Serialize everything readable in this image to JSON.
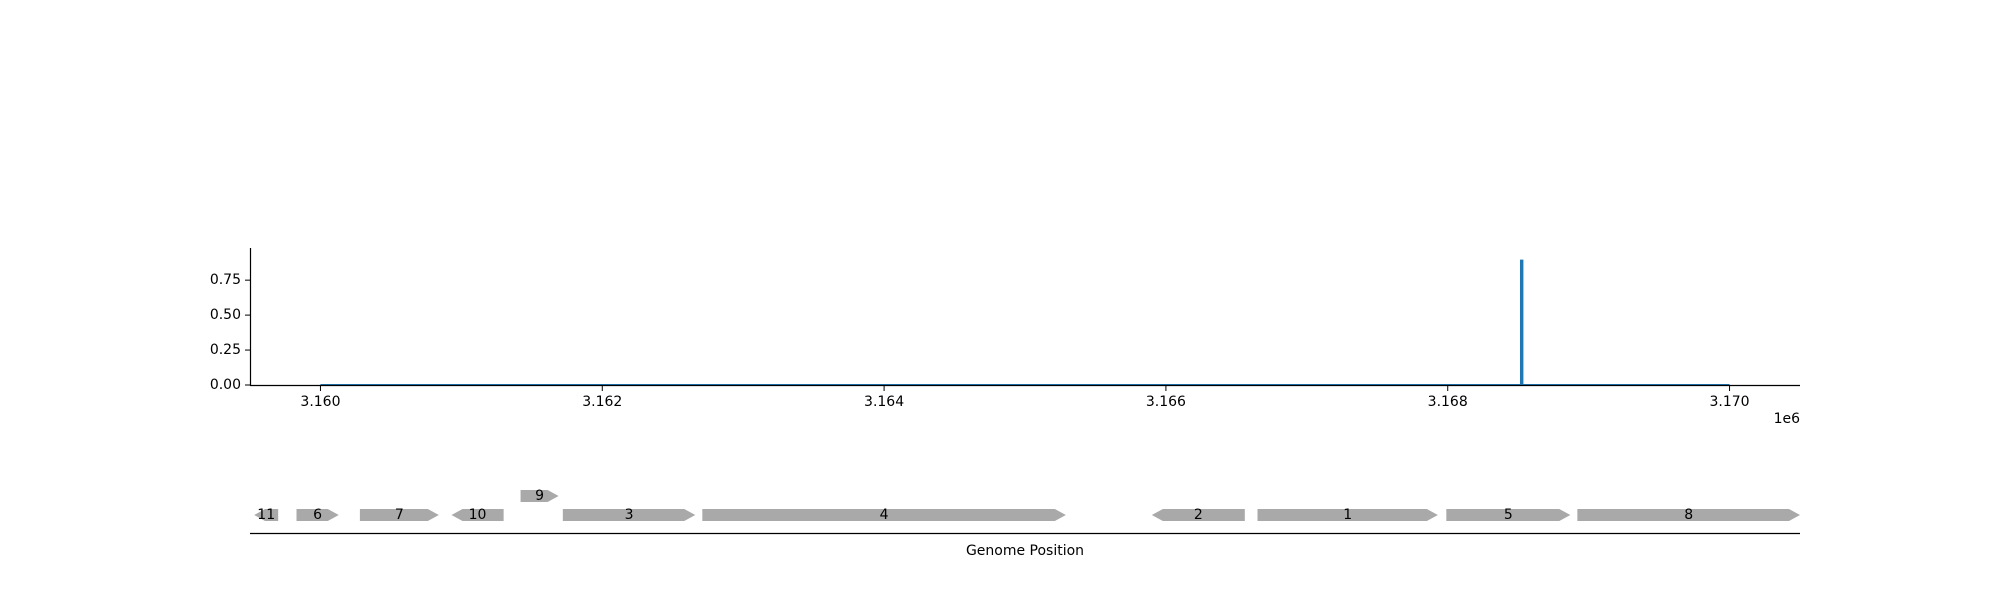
{
  "chart_data": [
    {
      "type": "line",
      "title": "",
      "xlabel": "",
      "ylabel": "",
      "xlim": [
        3159500,
        3170500
      ],
      "ylim": [
        0,
        0.98
      ],
      "x_offset_label": "1e6",
      "xticks": [
        3160000,
        3162000,
        3164000,
        3166000,
        3168000,
        3170000
      ],
      "xtick_labels": [
        "3.160",
        "3.162",
        "3.164",
        "3.166",
        "3.168",
        "3.170"
      ],
      "yticks": [
        0,
        0.25,
        0.5,
        0.75
      ],
      "ytick_labels": [
        "0.00",
        "0.25",
        "0.50",
        "0.75"
      ],
      "grid": false,
      "series": [
        {
          "color": "#1f77b4",
          "points": [
            [
              3160000,
              0
            ],
            [
              3168520,
              0
            ],
            [
              3168520,
              0.89
            ],
            [
              3168530,
              0.89
            ],
            [
              3168530,
              0
            ],
            [
              3170000,
              0
            ]
          ]
        }
      ]
    },
    {
      "type": "gene-track",
      "xlabel": "Genome Position",
      "xlim": [
        3159500,
        3170500
      ],
      "feature_color": "#a9a9a9",
      "features": [
        {
          "label": "11",
          "start": 3159530,
          "end": 3159700,
          "strand": "-",
          "row": 0
        },
        {
          "label": "6",
          "start": 3159830,
          "end": 3160130,
          "strand": "+",
          "row": 0
        },
        {
          "label": "7",
          "start": 3160280,
          "end": 3160840,
          "strand": "+",
          "row": 0
        },
        {
          "label": "10",
          "start": 3160930,
          "end": 3161300,
          "strand": "-",
          "row": 0
        },
        {
          "label": "9",
          "start": 3161420,
          "end": 3161690,
          "strand": "+",
          "row": 1
        },
        {
          "label": "3",
          "start": 3161720,
          "end": 3162660,
          "strand": "+",
          "row": 0
        },
        {
          "label": "4",
          "start": 3162710,
          "end": 3165290,
          "strand": "+",
          "row": 0
        },
        {
          "label": "2",
          "start": 3165900,
          "end": 3166560,
          "strand": "-",
          "row": 0
        },
        {
          "label": "1",
          "start": 3166650,
          "end": 3167930,
          "strand": "+",
          "row": 0
        },
        {
          "label": "5",
          "start": 3167990,
          "end": 3168870,
          "strand": "+",
          "row": 0
        },
        {
          "label": "8",
          "start": 3168920,
          "end": 3170500,
          "strand": "+",
          "row": 0
        }
      ]
    }
  ]
}
